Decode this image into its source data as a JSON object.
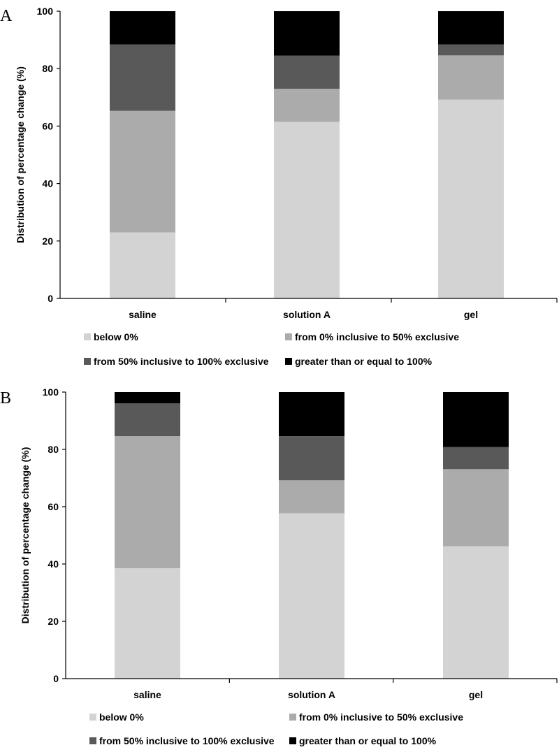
{
  "chart_data": [
    {
      "type": "bar",
      "stacked": true,
      "panel": "A",
      "categories": [
        "saline",
        "solution A",
        "gel"
      ],
      "ylabel": "Distribution of percentage change (%)",
      "xlabel": "",
      "ylim": [
        0,
        100
      ],
      "yticks": [
        "0",
        "20",
        "40",
        "60",
        "80",
        "100"
      ],
      "series": [
        {
          "name": "below 0%",
          "color": "#d3d3d3",
          "values": [
            23,
            61.5,
            69.2
          ]
        },
        {
          "name": "from 0% inclusive to 50% exclusive",
          "color": "#ababab",
          "values": [
            42.3,
            11.5,
            15.4
          ]
        },
        {
          "name": "from 50% inclusive to 100% exclusive",
          "color": "#595959",
          "values": [
            23.1,
            11.5,
            3.8
          ]
        },
        {
          "name": "greater than or equal to 100%",
          "color": "#000000",
          "values": [
            11.6,
            15.5,
            11.6
          ]
        }
      ],
      "legend_position": "bottom"
    },
    {
      "type": "bar",
      "stacked": true,
      "panel": "B",
      "categories": [
        "saline",
        "solution A",
        "gel"
      ],
      "ylabel": "Distribution of percentage change (%)",
      "xlabel": "",
      "ylim": [
        0,
        100
      ],
      "yticks": [
        "0",
        "20",
        "40",
        "60",
        "80",
        "100"
      ],
      "series": [
        {
          "name": "below 0%",
          "color": "#d3d3d3",
          "values": [
            38.5,
            57.7,
            46.2
          ]
        },
        {
          "name": "from 0% inclusive to 50% exclusive",
          "color": "#ababab",
          "values": [
            46.1,
            11.5,
            26.9
          ]
        },
        {
          "name": "from 50% inclusive to 100% exclusive",
          "color": "#595959",
          "values": [
            11.5,
            15.4,
            7.7
          ]
        },
        {
          "name": "greater than or equal to 100%",
          "color": "#000000",
          "values": [
            3.9,
            15.4,
            19.2
          ]
        }
      ],
      "legend_position": "bottom"
    }
  ]
}
